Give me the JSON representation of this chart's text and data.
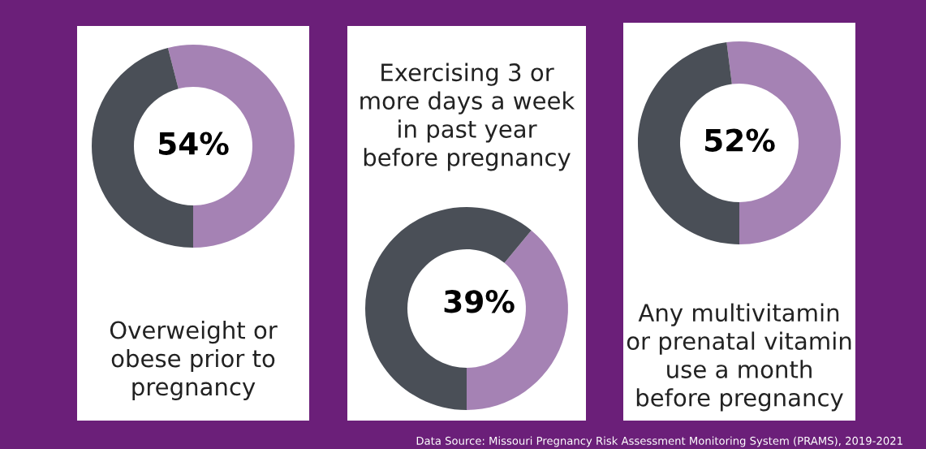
{
  "chart_data": [
    {
      "type": "donut",
      "title": "Overweight or\nobese prior to\npregnancy",
      "categories": [
        null,
        null
      ],
      "values": [
        54,
        46
      ],
      "colors": [
        "#a582b4",
        "#4a4f57"
      ],
      "value_labels": [
        "54%",
        null
      ]
    },
    {
      "type": "donut",
      "title": "Exercising 3 or\nmore days a week\nin past year\nbefore pregnancy",
      "categories": [
        null,
        null
      ],
      "values": [
        39,
        61
      ],
      "colors": [
        "#a582b4",
        "#4a4f57"
      ],
      "value_labels": [
        "39%",
        null
      ]
    },
    {
      "type": "donut",
      "title": "Any multivitamin\nor prenatal vitamin\nuse a month\nbefore pregnancy",
      "categories": [
        null,
        null
      ],
      "values": [
        52,
        48
      ],
      "colors": [
        "#a582b4",
        "#4a4f57"
      ],
      "value_labels": [
        "52%",
        null
      ],
      "annotations": [
        "Data Source: Missouri Pregnancy Risk Assessment Monitoring System (PRAMS), 2019-2021"
      ]
    }
  ]
}
